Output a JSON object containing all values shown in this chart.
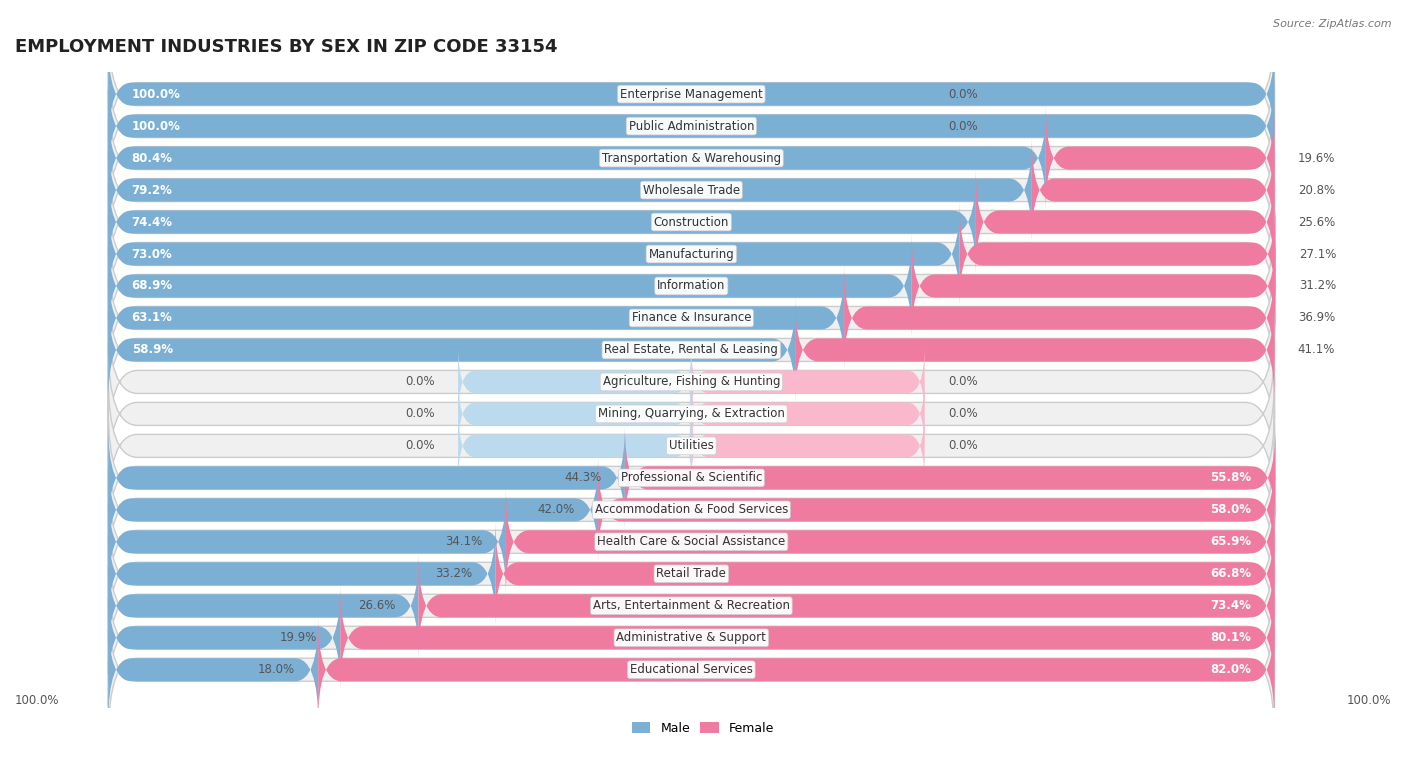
{
  "title": "EMPLOYMENT INDUSTRIES BY SEX IN ZIP CODE 33154",
  "source": "Source: ZipAtlas.com",
  "male_color": "#7BAFD4",
  "female_color": "#F07BA0",
  "zero_male_color": "#BBDAEE",
  "zero_female_color": "#F9B8CC",
  "bg_bar_color": "#EAEAEA",
  "bg_border_color": "#D0D0D0",
  "row_bg_color": "#F7F7F7",
  "categories": [
    "Enterprise Management",
    "Public Administration",
    "Transportation & Warehousing",
    "Wholesale Trade",
    "Construction",
    "Manufacturing",
    "Information",
    "Finance & Insurance",
    "Real Estate, Rental & Leasing",
    "Agriculture, Fishing & Hunting",
    "Mining, Quarrying, & Extraction",
    "Utilities",
    "Professional & Scientific",
    "Accommodation & Food Services",
    "Health Care & Social Assistance",
    "Retail Trade",
    "Arts, Entertainment & Recreation",
    "Administrative & Support",
    "Educational Services"
  ],
  "male_pct": [
    100.0,
    100.0,
    80.4,
    79.2,
    74.4,
    73.0,
    68.9,
    63.1,
    58.9,
    0.0,
    0.0,
    0.0,
    44.3,
    42.0,
    34.1,
    33.2,
    26.6,
    19.9,
    18.0
  ],
  "female_pct": [
    0.0,
    0.0,
    19.6,
    20.8,
    25.6,
    27.1,
    31.2,
    36.9,
    41.1,
    0.0,
    0.0,
    0.0,
    55.8,
    58.0,
    65.9,
    66.8,
    73.4,
    80.1,
    82.0
  ],
  "label_fontsize": 8.5,
  "pct_fontsize": 8.5,
  "title_fontsize": 13,
  "legend_fontsize": 9,
  "axis_label_fontsize": 8.5
}
